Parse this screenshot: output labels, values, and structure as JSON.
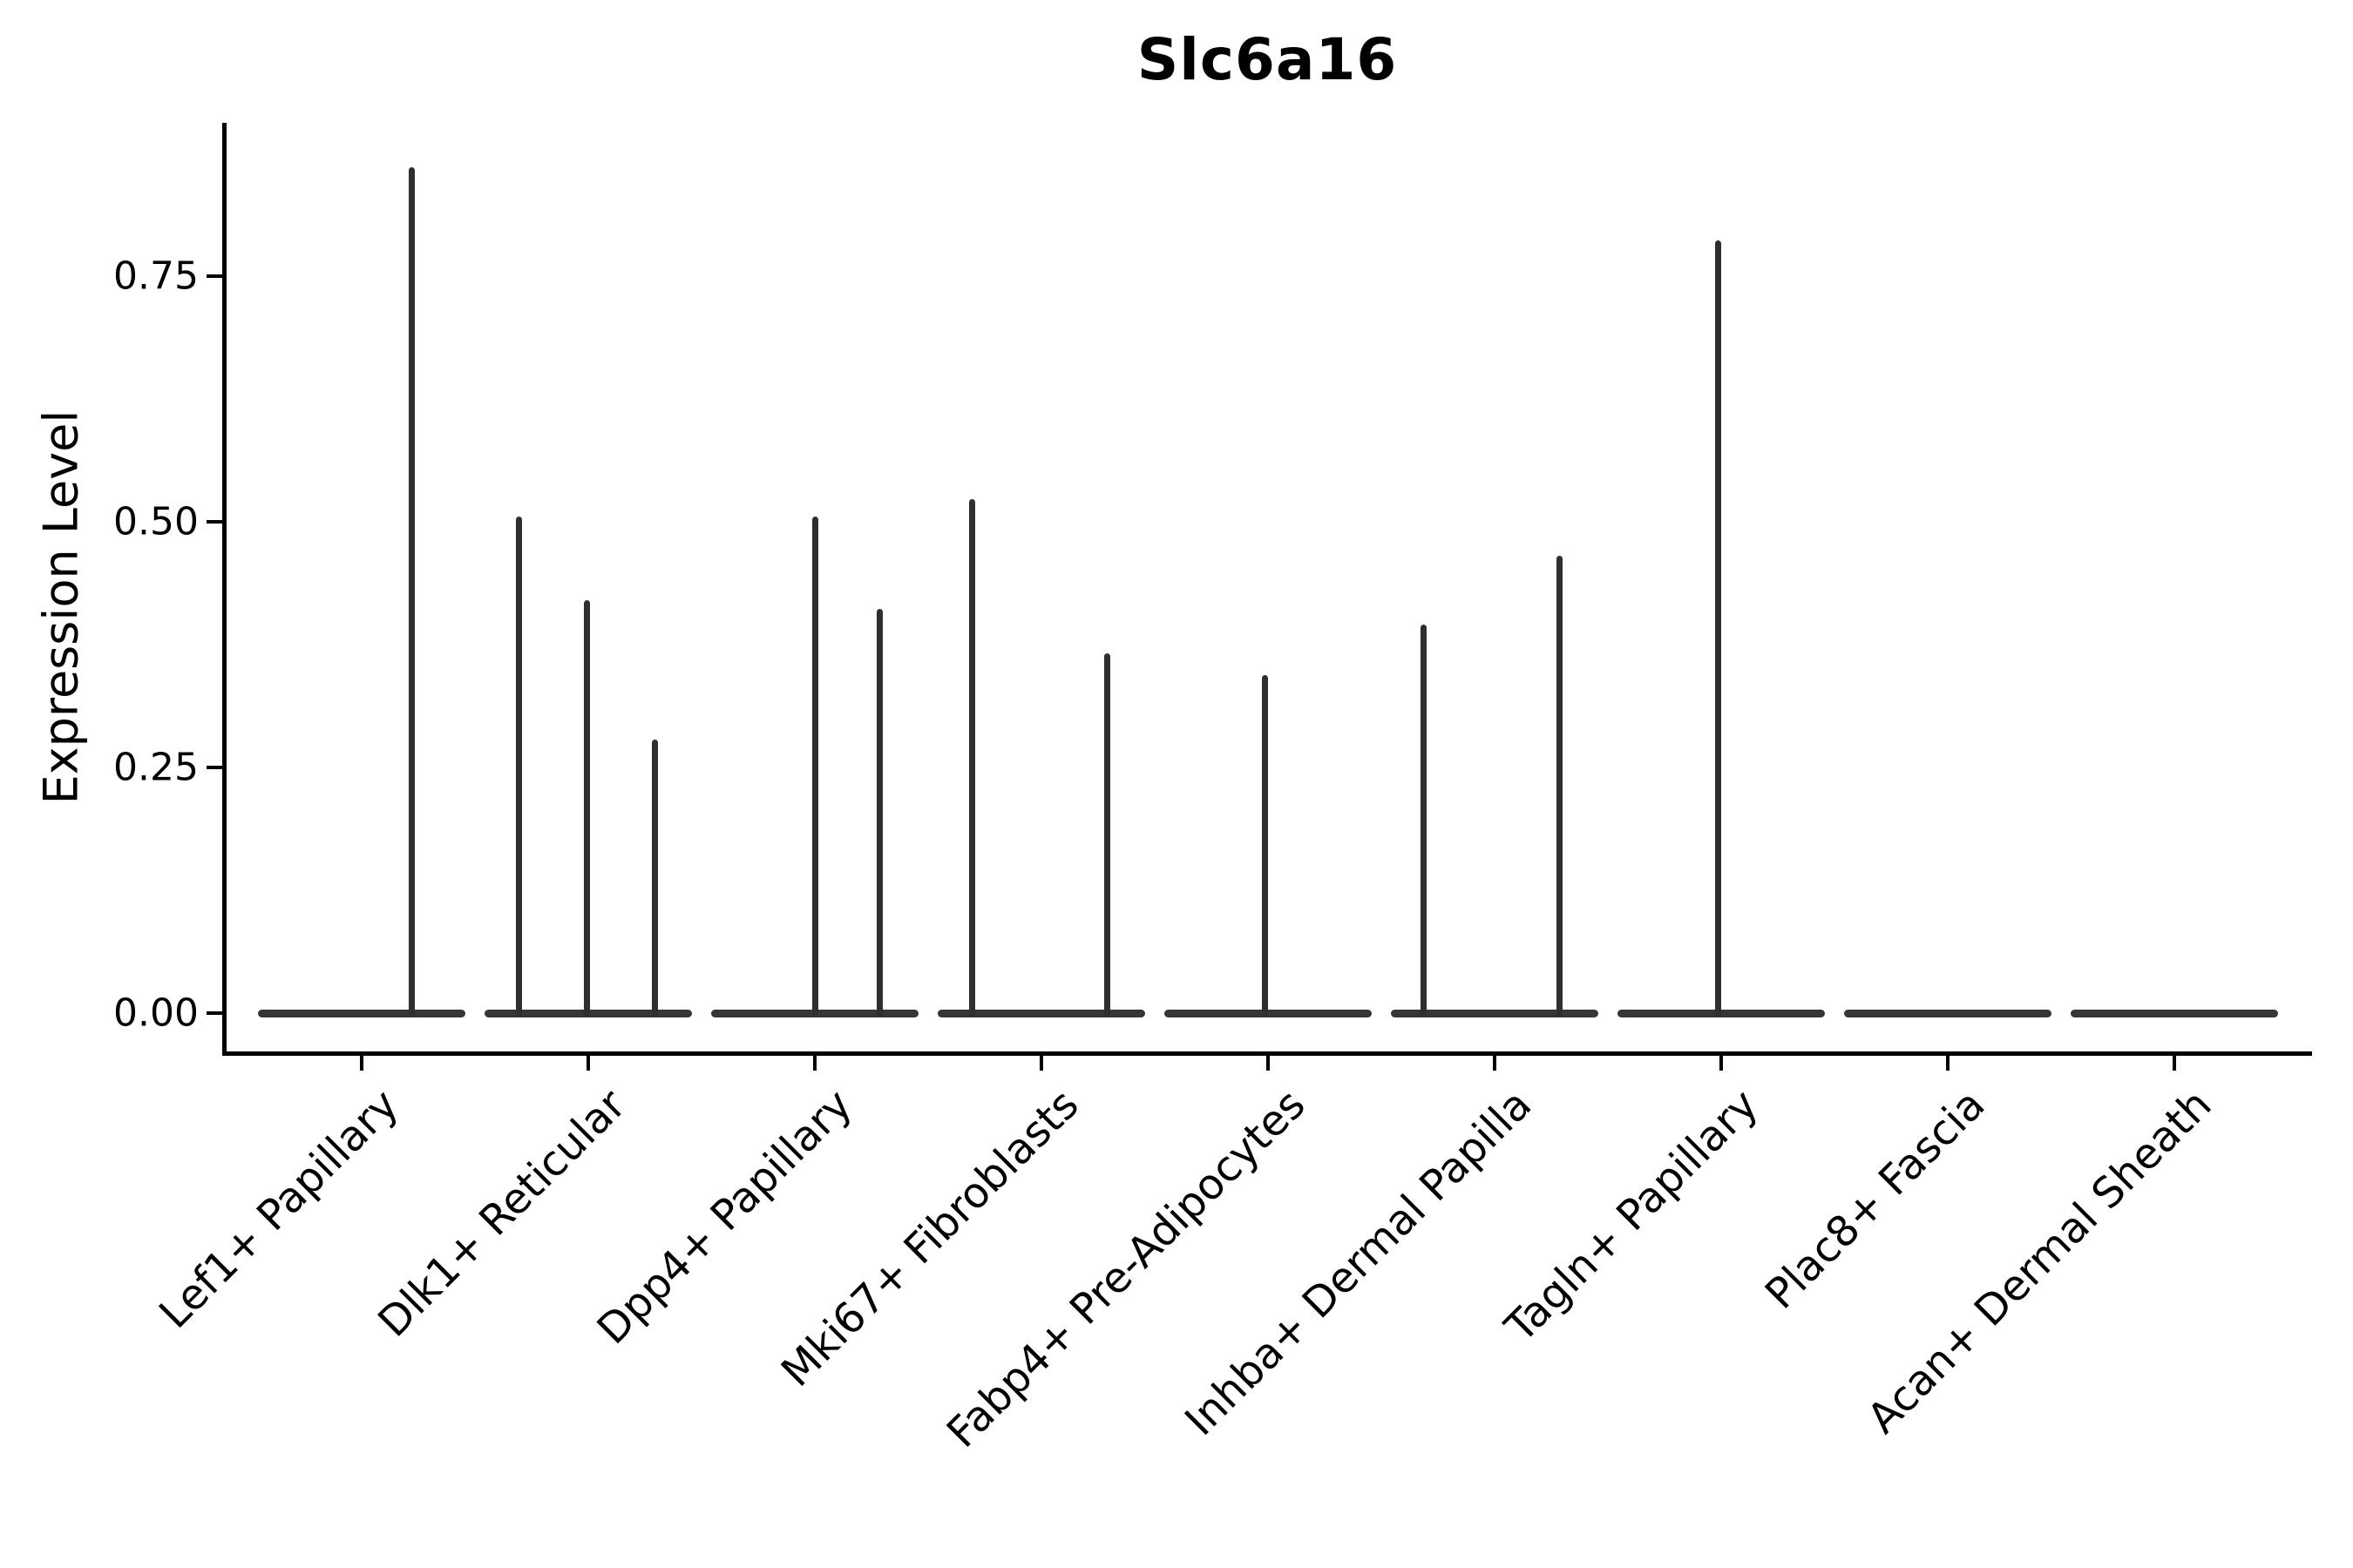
{
  "figure": {
    "title": "Slc6a16",
    "ylabel": "Expression Level"
  },
  "chart_data": {
    "type": "violin",
    "title": "Slc6a16",
    "xlabel": "",
    "ylabel": "Expression Level",
    "ylim": [
      -0.045,
      0.91
    ],
    "grid": false,
    "legend": "none",
    "violin_color": "#363636",
    "spike_color": "#2f2f2f",
    "axis_color": "#000000",
    "yticks": {
      "values": [
        0.0,
        0.25,
        0.5,
        0.75
      ],
      "labels": [
        "0.00",
        "0.25",
        "0.50",
        "0.75"
      ]
    },
    "categories": [
      "Lef1+ Papillary",
      "Dlk1+ Reticular",
      "Dpp4+ Papillary",
      "Mki67+ Fibroblasts",
      "Fabp4+ Pre-Adipocytes",
      "Inhba+ Dermal Papilla",
      "Tagln+ Papillary",
      "Plac8+ Fascia",
      "Acan+ Dermal Sheath"
    ],
    "series": [
      {
        "name": "Lef1+ Papillary",
        "baseline_value": 0,
        "baseline_halfwidth_frac": 0.4575,
        "spikes": [
          {
            "offset_frac": 0.223,
            "value": 0.861
          }
        ]
      },
      {
        "name": "Dlk1+ Reticular",
        "baseline_value": 0,
        "baseline_halfwidth_frac": 0.4575,
        "spikes": [
          {
            "offset_frac": -0.304,
            "value": 0.505
          },
          {
            "offset_frac": -0.004,
            "value": 0.42
          },
          {
            "offset_frac": 0.296,
            "value": 0.278
          }
        ]
      },
      {
        "name": "Dpp4+ Papillary",
        "baseline_value": 0,
        "baseline_halfwidth_frac": 0.4575,
        "spikes": [
          {
            "offset_frac": 0.0,
            "value": 0.505
          },
          {
            "offset_frac": 0.288,
            "value": 0.411
          }
        ]
      },
      {
        "name": "Mki67+ Fibroblasts",
        "baseline_value": 0,
        "baseline_halfwidth_frac": 0.4575,
        "spikes": [
          {
            "offset_frac": -0.304,
            "value": 0.523
          },
          {
            "offset_frac": 0.292,
            "value": 0.366
          }
        ]
      },
      {
        "name": "Fabp4+ Pre-Adipocytes",
        "baseline_value": 0,
        "baseline_halfwidth_frac": 0.4575,
        "spikes": [
          {
            "offset_frac": -0.012,
            "value": 0.344
          }
        ]
      },
      {
        "name": "Inhba+ Dermal Papilla",
        "baseline_value": 0,
        "baseline_halfwidth_frac": 0.4575,
        "spikes": [
          {
            "offset_frac": -0.312,
            "value": 0.395
          },
          {
            "offset_frac": 0.285,
            "value": 0.465
          }
        ]
      },
      {
        "name": "Tagln+ Papillary",
        "baseline_value": 0,
        "baseline_halfwidth_frac": 0.4575,
        "spikes": [
          {
            "offset_frac": -0.012,
            "value": 0.786
          }
        ]
      },
      {
        "name": "Plac8+ Fascia",
        "baseline_value": 0,
        "baseline_halfwidth_frac": 0.4575,
        "spikes": []
      },
      {
        "name": "Acan+ Dermal Sheath",
        "baseline_value": 0,
        "baseline_halfwidth_frac": 0.4575,
        "spikes": []
      }
    ]
  }
}
